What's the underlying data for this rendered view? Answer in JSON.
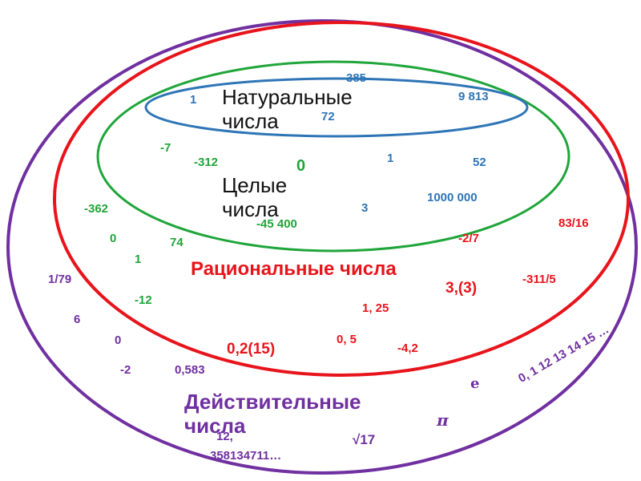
{
  "sets": {
    "natural": {
      "label_line1": "Натуральные",
      "label_line2": "числа",
      "color": "#2E75B6",
      "examples": [
        "385",
        "1",
        "9 813",
        "72",
        "1",
        "52",
        "3",
        "1000 000"
      ]
    },
    "integer": {
      "label_line1": "Целые",
      "label_line2": "числа",
      "color": "#1FA53A",
      "examples": [
        "-7",
        "-312",
        "0",
        "-45 400",
        "-362",
        "0",
        "74",
        "1",
        "-12"
      ]
    },
    "rational": {
      "label": "Рациональные числа",
      "color": "#E8141B",
      "examples": [
        "83/16",
        "-2/7",
        "-311/5",
        "3,(3)",
        "1, 25",
        "0, 5",
        "-4,2",
        "0,2(15)"
      ]
    },
    "real": {
      "label_line1": "Действительные",
      "label_line2": "числа",
      "color": "#7030A0",
      "examples": [
        "1/79",
        "6",
        "0",
        "-2",
        "0,583",
        "0, 1 12 13 14 15 …",
        "e",
        "π",
        "√17",
        "12,",
        "358134711…"
      ]
    }
  }
}
